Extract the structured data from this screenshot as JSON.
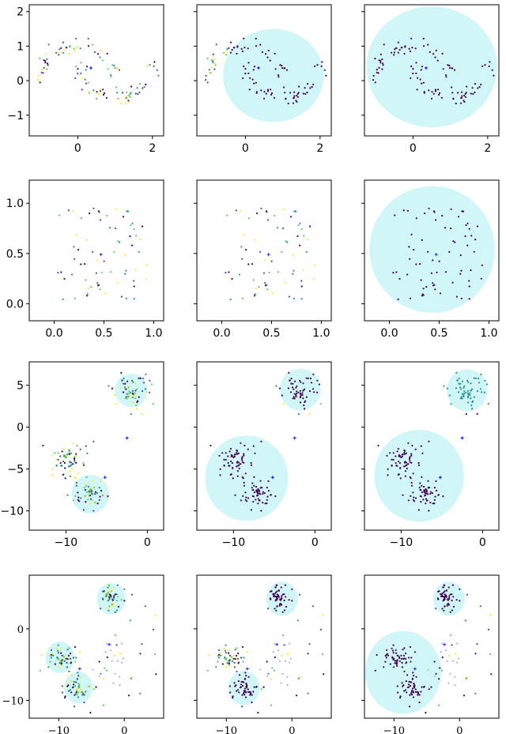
{
  "colors": {
    "circle": "#c9f5f7",
    "frame": "#000000",
    "palette": [
      "#440154",
      "#3b528b",
      "#21918c",
      "#5ec962",
      "#fde725"
    ],
    "cross": "#1f1fff",
    "lavender": "#b7a9e6"
  },
  "chart_data": [
    {
      "type": "scatter",
      "xlim": [
        -1.3,
        2.3
      ],
      "ylim": [
        -1.6,
        2.2
      ],
      "xticks": [
        0,
        2
      ],
      "xtick_labels": [
        "0",
        "2"
      ],
      "yticks": [
        -1,
        0,
        1,
        2
      ],
      "ytick_labels": [
        "−1",
        "0",
        "1",
        "2"
      ],
      "panels": [
        {
          "dataset": "moons",
          "circles": [],
          "mode": "colored"
        },
        {
          "dataset": "moons",
          "circles": [
            {
              "cx": 0.75,
              "cy": 0.15,
              "r": 1.35
            }
          ],
          "mode": "mostly-dark"
        },
        {
          "dataset": "moons",
          "circles": [
            {
              "cx": 0.5,
              "cy": 0.4,
              "r": 1.75
            }
          ],
          "mode": "dark"
        }
      ]
    },
    {
      "type": "scatter",
      "xlim": [
        -0.25,
        1.1
      ],
      "ylim": [
        -0.17,
        1.23
      ],
      "xticks": [
        0,
        0.5,
        1
      ],
      "xtick_labels": [
        "0.0",
        "0.5",
        "1.0"
      ],
      "yticks": [
        0,
        0.5,
        1
      ],
      "ytick_labels": [
        "0.0",
        "0.5",
        "1.0"
      ],
      "panels": [
        {
          "dataset": "uniform",
          "circles": [],
          "mode": "colored"
        },
        {
          "dataset": "uniform",
          "circles": [],
          "mode": "colored"
        },
        {
          "dataset": "uniform",
          "circles": [
            {
              "cx": 0.43,
              "cy": 0.54,
              "r": 0.63
            }
          ],
          "mode": "dark"
        }
      ]
    },
    {
      "type": "scatter",
      "xlim": [
        -14.5,
        2
      ],
      "ylim": [
        -12.3,
        7.8
      ],
      "xticks": [
        -10,
        0
      ],
      "xtick_labels": [
        "−10",
        "0"
      ],
      "yticks": [
        -10,
        -5,
        0,
        5
      ],
      "ytick_labels": [
        "−10",
        "−5",
        "0",
        "5"
      ],
      "panels": [
        {
          "dataset": "blobs3",
          "circles": [
            {
              "cx": -2,
              "cy": 4.4,
              "r": 2.0
            },
            {
              "cx": -7,
              "cy": -8,
              "r": 2.3
            }
          ],
          "mode": "colored"
        },
        {
          "dataset": "blobs3",
          "circles": [
            {
              "cx": -1.8,
              "cy": 4.5,
              "r": 2.5
            },
            {
              "cx": -8.4,
              "cy": -6.1,
              "r": 5.1
            }
          ],
          "mode": "dark"
        },
        {
          "dataset": "blobs3",
          "circles": [
            {
              "cx": -1.9,
              "cy": 4.4,
              "r": 2.5
            },
            {
              "cx": -7.8,
              "cy": -5.8,
              "r": 5.5
            }
          ],
          "mode": "teal"
        }
      ]
    },
    {
      "type": "scatter",
      "xlim": [
        -14.5,
        6
      ],
      "ylim": [
        -12.5,
        7.5
      ],
      "xticks": [
        -10,
        0
      ],
      "xtick_labels": [
        "−10",
        "0"
      ],
      "yticks": [
        -10,
        0
      ],
      "ytick_labels": [
        "−10",
        "0"
      ],
      "serif_ticks": true,
      "panels": [
        {
          "dataset": "blobs4",
          "circles": [
            {
              "cx": -2,
              "cy": 4.2,
              "r": 2.2
            },
            {
              "cx": -9.8,
              "cy": -4,
              "r": 2.2
            },
            {
              "cx": -7,
              "cy": -8.2,
              "r": 2.2
            }
          ],
          "mode": "colored"
        },
        {
          "dataset": "blobs4",
          "circles": [
            {
              "cx": -1.5,
              "cy": 4.2,
              "r": 2.4
            },
            {
              "cx": -7.3,
              "cy": -8.3,
              "r": 2.4
            }
          ],
          "mode": "dark"
        },
        {
          "dataset": "blobs4",
          "circles": [
            {
              "cx": -1.6,
              "cy": 4.2,
              "r": 2.4
            },
            {
              "cx": -8.6,
              "cy": -6.1,
              "r": 5.8
            }
          ],
          "mode": "dark"
        }
      ]
    }
  ]
}
